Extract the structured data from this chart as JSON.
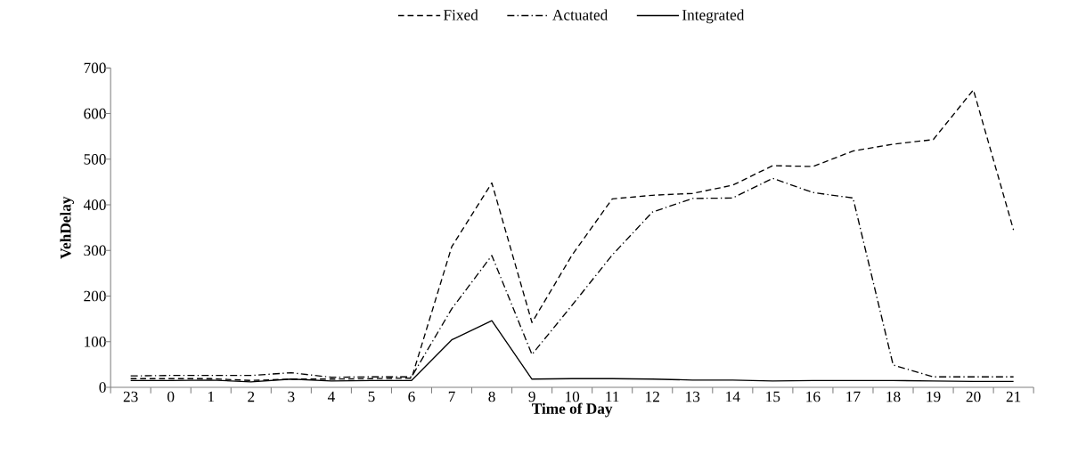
{
  "chart_data": {
    "type": "line",
    "xlabel": "Time of Day",
    "ylabel": "VehDelay",
    "categories": [
      "23",
      "0",
      "1",
      "2",
      "3",
      "4",
      "5",
      "6",
      "7",
      "8",
      "9",
      "10",
      "11",
      "12",
      "13",
      "14",
      "15",
      "16",
      "17",
      "18",
      "19",
      "20",
      "21"
    ],
    "ylim": [
      0,
      700
    ],
    "yticks": [
      0,
      100,
      200,
      300,
      400,
      500,
      600,
      700
    ],
    "grid": false,
    "legend": "top",
    "marker": "none",
    "series": [
      {
        "name": "Fixed",
        "color": "#000000",
        "line_style": "dashed",
        "values": [
          19,
          19,
          19,
          15,
          18,
          18,
          19,
          20,
          308,
          448,
          142,
          290,
          413,
          421,
          425,
          443,
          486,
          484,
          518,
          533,
          543,
          652,
          345
        ]
      },
      {
        "name": "Actuated",
        "color": "#000000",
        "line_style": "dashdot",
        "values": [
          25,
          26,
          26,
          26,
          32,
          22,
          23,
          23,
          172,
          289,
          72,
          180,
          290,
          384,
          414,
          415,
          458,
          427,
          415,
          49,
          23,
          23,
          23
        ]
      },
      {
        "name": "Integrated",
        "color": "#000000",
        "line_style": "solid",
        "values": [
          15,
          15,
          16,
          12,
          18,
          14,
          15,
          15,
          104,
          146,
          18,
          19,
          19,
          18,
          16,
          16,
          14,
          15,
          15,
          15,
          14,
          13,
          13
        ]
      }
    ]
  }
}
